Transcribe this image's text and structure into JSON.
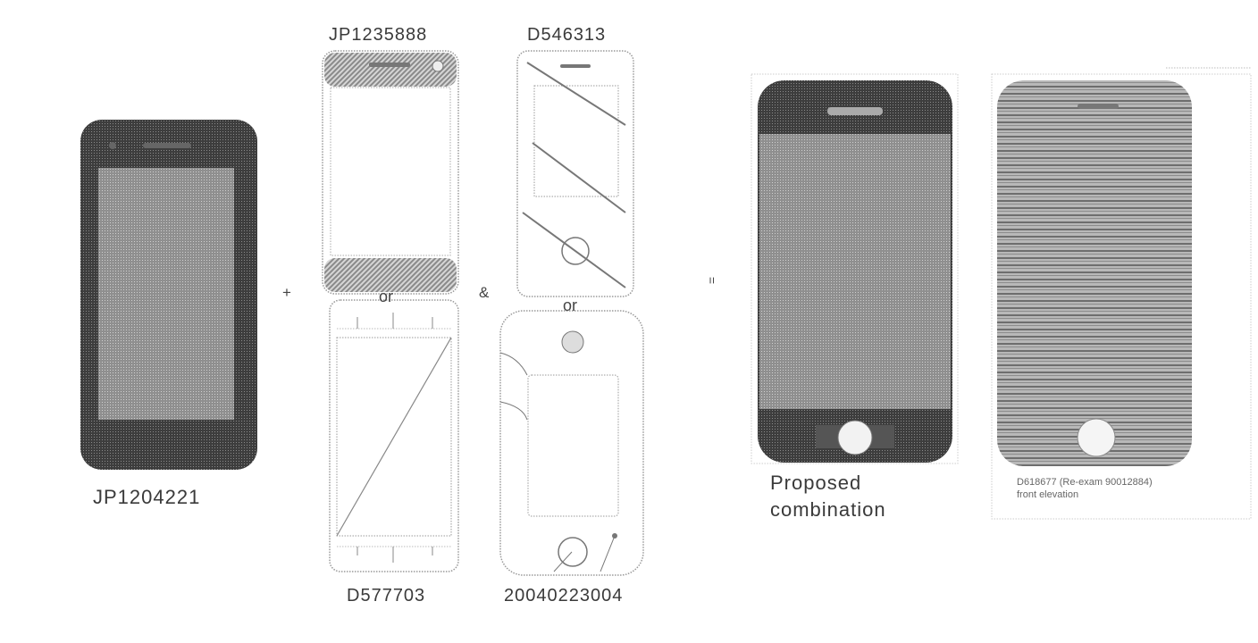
{
  "labels": {
    "jp1204221": "JP1204221",
    "jp1235888": "JP1235888",
    "d546313": "D546313",
    "d577703": "D577703",
    "pub20040223004": "20040223004",
    "proposed_line1": "Proposed",
    "proposed_line2": "combination",
    "d618677_line1": "D618677  (Re-exam 90012884)",
    "d618677_line2": "front elevation"
  },
  "operators": {
    "plus": "+",
    "or_top": "or",
    "ampersand": "&",
    "or_right": "or",
    "equals": "="
  }
}
